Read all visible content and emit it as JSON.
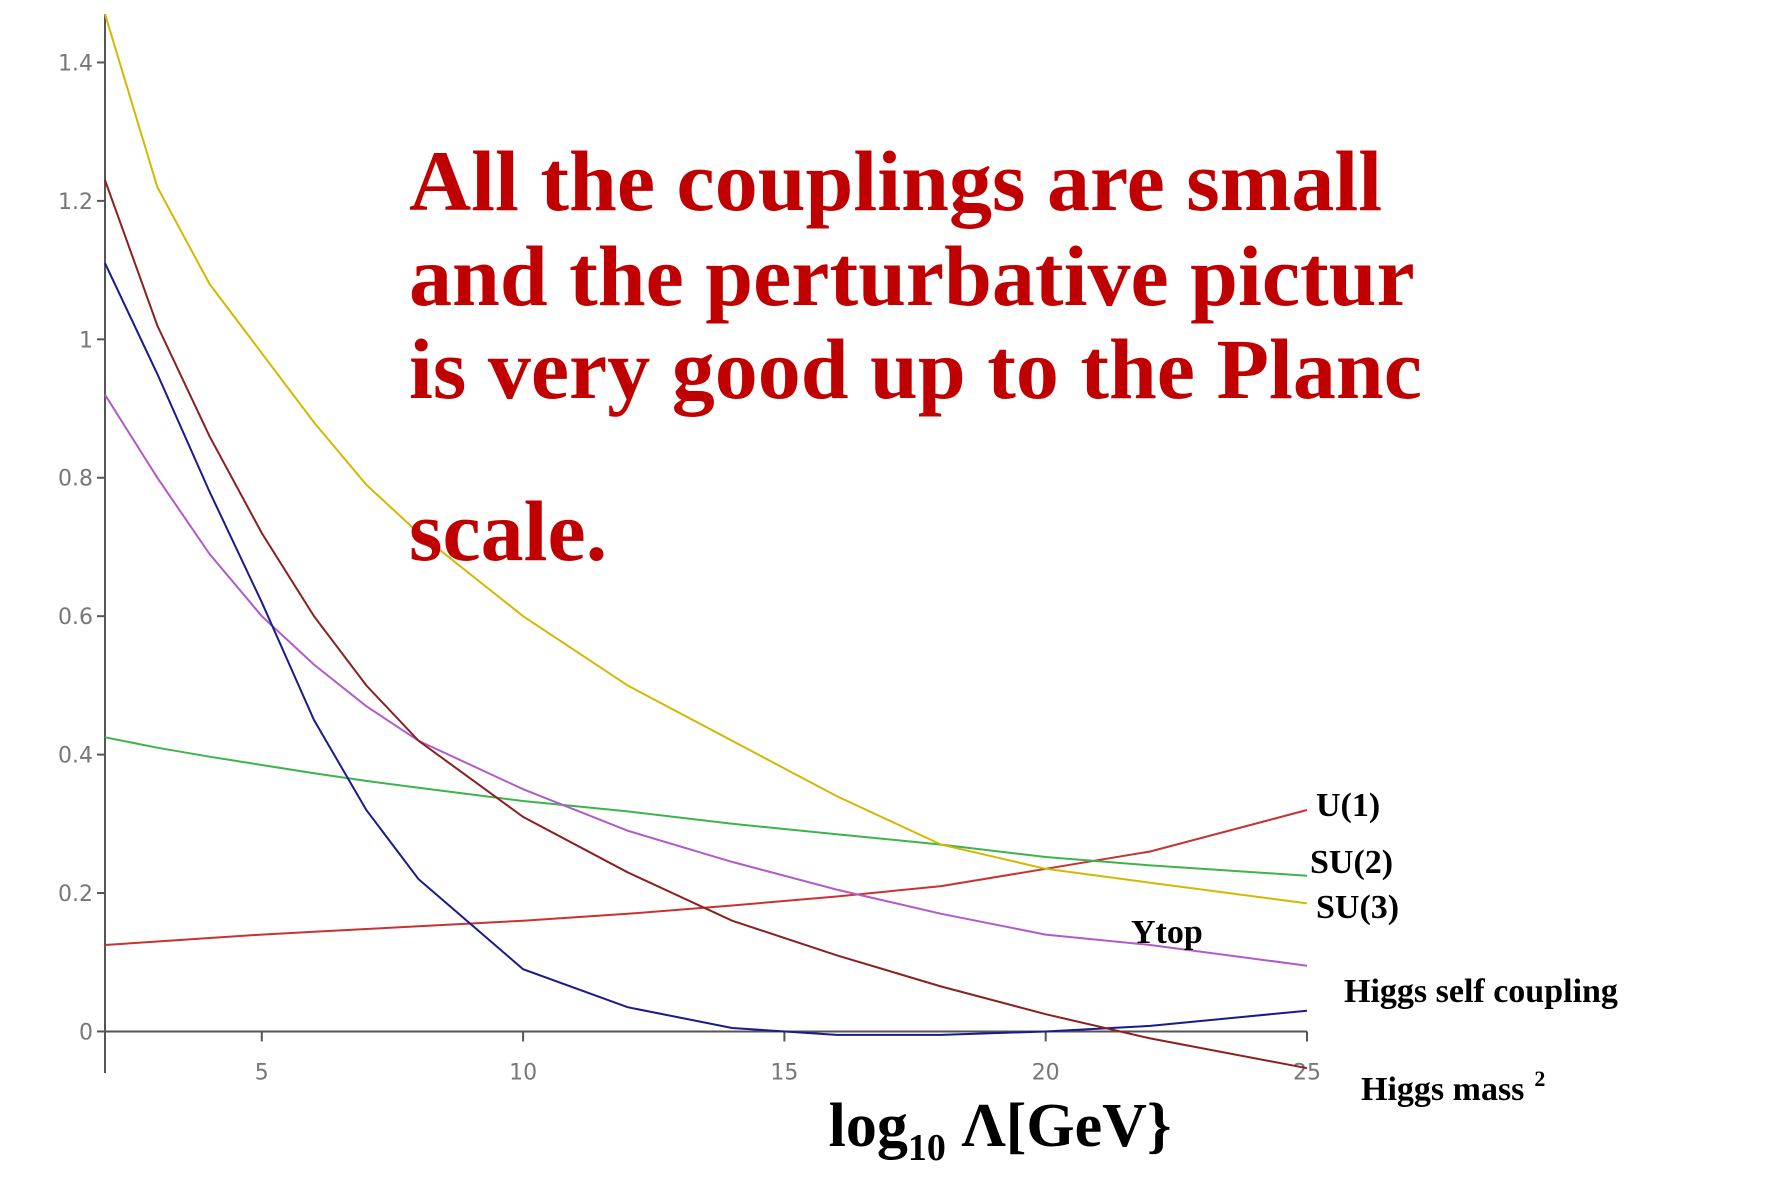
{
  "chart_data": {
    "type": "line",
    "annotation_lines": [
      "All the couplings are small",
      "and the perturbative pictur",
      "is very good up to the Planc",
      "scale."
    ],
    "x_label": {
      "main": "log",
      "sub": "10",
      "rest": " Λ[GeV}"
    },
    "x": [
      2,
      3,
      4,
      5,
      6,
      7,
      8,
      10,
      12,
      14,
      16,
      18,
      20,
      22,
      25
    ],
    "series": [
      {
        "name": "U(1)",
        "color": "#c83232",
        "values": [
          0.125,
          0.13,
          0.135,
          0.14,
          0.144,
          0.148,
          0.152,
          0.16,
          0.17,
          0.182,
          0.195,
          0.21,
          0.235,
          0.26,
          0.32
        ]
      },
      {
        "name": "SU(2)",
        "color": "#3cb44b",
        "values": [
          0.425,
          0.41,
          0.397,
          0.385,
          0.373,
          0.362,
          0.352,
          0.333,
          0.318,
          0.3,
          0.285,
          0.27,
          0.252,
          0.24,
          0.225
        ]
      },
      {
        "name": "SU(3)",
        "color": "#d4b800",
        "values": [
          1.47,
          1.22,
          1.08,
          0.98,
          0.88,
          0.79,
          0.72,
          0.6,
          0.5,
          0.42,
          0.34,
          0.27,
          0.235,
          0.215,
          0.185
        ]
      },
      {
        "name": "Ytop",
        "color": "#b05cc8",
        "values": [
          0.92,
          0.8,
          0.69,
          0.6,
          0.53,
          0.47,
          0.42,
          0.35,
          0.29,
          0.245,
          0.205,
          0.17,
          0.14,
          0.125,
          0.095
        ]
      },
      {
        "name": "Higgs self coupling",
        "color": "#1a1a8c",
        "values": [
          1.11,
          0.95,
          0.78,
          0.62,
          0.45,
          0.32,
          0.22,
          0.09,
          0.035,
          0.005,
          -0.005,
          -0.005,
          0.0,
          0.008,
          0.03
        ]
      },
      {
        "name": "Higgs mass",
        "name_sup": "2",
        "color": "#8b2020",
        "values": [
          1.23,
          1.02,
          0.86,
          0.72,
          0.6,
          0.5,
          0.42,
          0.31,
          0.23,
          0.16,
          0.11,
          0.065,
          0.025,
          -0.01,
          -0.053
        ]
      }
    ],
    "xlim": [
      2,
      25
    ],
    "ylim": [
      -0.06,
      1.47
    ],
    "xticks": [
      5,
      10,
      15,
      20,
      25
    ],
    "yticks": [
      0,
      0.2,
      0.4,
      0.6,
      0.8,
      1,
      1.2,
      1.4
    ]
  }
}
